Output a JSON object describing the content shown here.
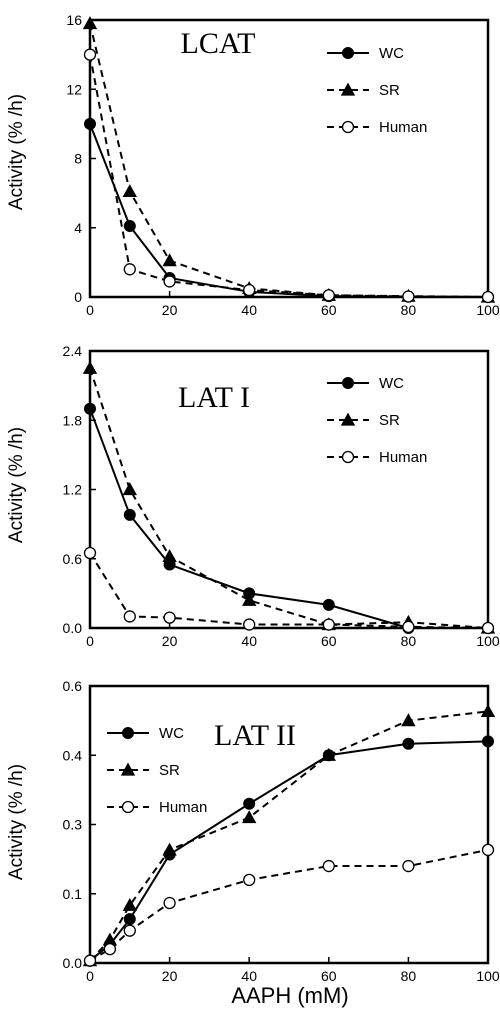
{
  "chart_data": [
    {
      "type": "line",
      "title": "LCAT",
      "ylabel": "Activity (% /h)",
      "xlabel": "",
      "x": [
        0,
        10,
        20,
        40,
        60,
        80,
        100
      ],
      "xlim": [
        0,
        100
      ],
      "ylim": [
        0,
        16
      ],
      "xticks": [
        "0",
        "20",
        "40",
        "60",
        "80",
        "100"
      ],
      "yticks": [
        "0",
        "4",
        "8",
        "12",
        "16"
      ],
      "legend_position": "top-right",
      "series": [
        {
          "name": "WC",
          "marker": "filled-circle",
          "line": "solid",
          "values": [
            10,
            4.1,
            1.1,
            0.3,
            0.05,
            0.02,
            0
          ]
        },
        {
          "name": "SR",
          "marker": "filled-triangle",
          "line": "dashed",
          "values": [
            15.8,
            6.1,
            2.1,
            0.5,
            0.1,
            0.05,
            0
          ]
        },
        {
          "name": "Human",
          "marker": "open-circle",
          "line": "dashed",
          "values": [
            14,
            1.6,
            0.9,
            0.4,
            0.1,
            0.03,
            0
          ]
        }
      ]
    },
    {
      "type": "line",
      "title": "LAT I",
      "ylabel": "Activity (% /h)",
      "xlabel": "",
      "x": [
        0,
        10,
        20,
        40,
        60,
        80,
        100
      ],
      "xlim": [
        0,
        100
      ],
      "ylim": [
        0,
        2.4
      ],
      "xticks": [
        "0",
        "20",
        "40",
        "60",
        "80",
        "100"
      ],
      "yticks": [
        "0.0",
        "0.6",
        "1.2",
        "1.8",
        "2.4"
      ],
      "legend_position": "top-right",
      "series": [
        {
          "name": "WC",
          "marker": "filled-circle",
          "line": "solid",
          "values": [
            1.9,
            0.98,
            0.55,
            0.3,
            0.2,
            0,
            0
          ]
        },
        {
          "name": "SR",
          "marker": "filled-triangle",
          "line": "dashed",
          "values": [
            2.25,
            1.2,
            0.62,
            0.24,
            0.03,
            0.05,
            0
          ]
        },
        {
          "name": "Human",
          "marker": "open-circle",
          "line": "dashed",
          "values": [
            0.65,
            0.1,
            0.09,
            0.03,
            0.03,
            0.01,
            0
          ]
        }
      ]
    },
    {
      "type": "line",
      "title": "LAT II",
      "ylabel": "Activity (% /h)",
      "xlabel": "AAPH (mM)",
      "x": [
        0,
        5,
        10,
        20,
        40,
        60,
        80,
        100
      ],
      "xlim": [
        0,
        100
      ],
      "ylim": [
        0,
        0.6
      ],
      "xticks": [
        "0",
        "20",
        "40",
        "60",
        "80",
        "100"
      ],
      "yticks": [
        "0.0",
        "0.1",
        "0.3",
        "0.4",
        "0.6"
      ],
      "legend_position": "top-left",
      "series": [
        {
          "name": "WC",
          "marker": "filled-circle",
          "line": "solid",
          "values": [
            0.005,
            0.04,
            0.095,
            0.235,
            0.345,
            0.45,
            0.475,
            0.48
          ]
        },
        {
          "name": "SR",
          "marker": "filled-triangle",
          "line": "dashed",
          "values": [
            0.005,
            0.05,
            0.125,
            0.245,
            0.315,
            0.45,
            0.525,
            0.545
          ]
        },
        {
          "name": "Human",
          "marker": "open-circle",
          "line": "dashed",
          "values": [
            0.005,
            0.03,
            0.07,
            0.13,
            0.18,
            0.21,
            0.21,
            0.245
          ]
        }
      ]
    }
  ]
}
